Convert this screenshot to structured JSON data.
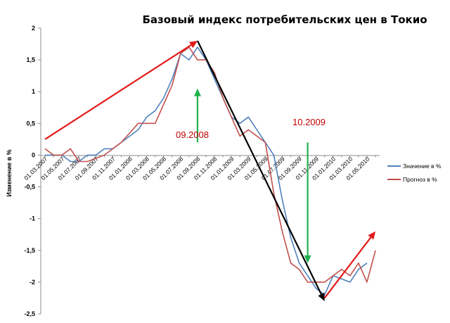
{
  "chart_data": {
    "type": "line",
    "title": "Базовый индекс потребительских цен в Токио",
    "ylabel": "Изменение в %",
    "xlabel": "",
    "ylim": [
      -2.5,
      2
    ],
    "yticks": [
      "2",
      "1,5",
      "1",
      "0,5",
      "0",
      "-0,5",
      "-1",
      "-1,5",
      "-2",
      "-2,5"
    ],
    "ytick_values": [
      2,
      1.5,
      1,
      0.5,
      0,
      -0.5,
      -1,
      -1.5,
      -2,
      -2.5
    ],
    "x_tick_labels": [
      "01.03.2007",
      "01.05.2007",
      "01.07.2007",
      "01.09.2007",
      "01.11.2007",
      "01.01.2008",
      "01.03.2008",
      "01.05.2008",
      "01.07.2008",
      "01.09.2008",
      "01.11.2008",
      "01.01.2009",
      "01.03.2009",
      "01.05.2009",
      "01.07.2009",
      "01.09.2009",
      "01.11.2009",
      "01.01.2010",
      "01.03.2010",
      "01.05.2010"
    ],
    "x": [
      "01.03.2007",
      "01.04.2007",
      "01.05.2007",
      "01.06.2007",
      "01.07.2007",
      "01.08.2007",
      "01.09.2007",
      "01.10.2007",
      "01.11.2007",
      "01.12.2007",
      "01.01.2008",
      "01.02.2008",
      "01.03.2008",
      "01.04.2008",
      "01.05.2008",
      "01.06.2008",
      "01.07.2008",
      "01.08.2008",
      "01.09.2008",
      "01.10.2008",
      "01.11.2008",
      "01.12.2008",
      "01.01.2009",
      "01.02.2009",
      "01.03.2009",
      "01.04.2009",
      "01.05.2009",
      "01.06.2009",
      "01.07.2009",
      "01.08.2009",
      "01.09.2009",
      "01.10.2009",
      "01.11.2009",
      "01.12.2009",
      "01.01.2010",
      "01.02.2010",
      "01.03.2010",
      "01.04.2010",
      "01.05.2010",
      "01.06.2010"
    ],
    "series": [
      {
        "name": "Значение  в %",
        "color": "#4f81bd",
        "values": [
          0,
          0,
          0,
          -0.1,
          -0.1,
          0,
          0,
          0.1,
          0.1,
          0.2,
          0.3,
          0.4,
          0.6,
          0.7,
          0.9,
          1.2,
          1.6,
          1.5,
          1.7,
          1.5,
          1.2,
          0.9,
          0.6,
          0.5,
          0.6,
          0.4,
          0.2,
          0,
          -0.7,
          -1.3,
          -1.7,
          -1.9,
          -2.1,
          -2.2,
          -1.9,
          -1.95,
          -2.0,
          -1.8,
          -1.7,
          null
        ]
      },
      {
        "name": "Прогноз в %",
        "color": "#c0504d",
        "values": [
          0.1,
          0,
          0,
          0.1,
          -0.1,
          -0.1,
          -0.05,
          0,
          0.1,
          0.2,
          0.35,
          0.5,
          0.5,
          0.5,
          0.8,
          1.1,
          1.6,
          1.7,
          1.5,
          1.5,
          1.3,
          0.9,
          0.6,
          0.3,
          0.4,
          0.3,
          0.2,
          -0.6,
          -1.2,
          -1.7,
          -1.8,
          -2.0,
          -2.0,
          -2.0,
          -1.9,
          -1.8,
          -1.9,
          -1.7,
          -2.0,
          -1.5
        ]
      }
    ],
    "legend": "right",
    "grid": false,
    "annotations": [
      {
        "text": "09.2008",
        "color": "#c00000"
      },
      {
        "text": "10.2009",
        "color": "#c00000"
      }
    ],
    "trend_arrows": [
      {
        "color": "#e31b1b",
        "from": [
          "01.03.2007",
          0.25
        ],
        "to": [
          "01.09.2008",
          1.8
        ]
      },
      {
        "color": "#000000",
        "from": [
          "01.09.2008",
          1.8
        ],
        "to": [
          "01.12.2009",
          -2.3
        ]
      },
      {
        "color": "#e31b1b",
        "from": [
          "01.12.2009",
          -2.25
        ],
        "to": [
          "01.06.2010",
          -1.2
        ]
      },
      {
        "color": "#21b14c",
        "from": [
          "01.09.2008",
          0.2
        ],
        "to": [
          "01.09.2008",
          1.05
        ]
      },
      {
        "color": "#21b14c",
        "from": [
          "01.10.2009",
          0.2
        ],
        "to": [
          "01.10.2009",
          -1.7
        ]
      }
    ]
  }
}
